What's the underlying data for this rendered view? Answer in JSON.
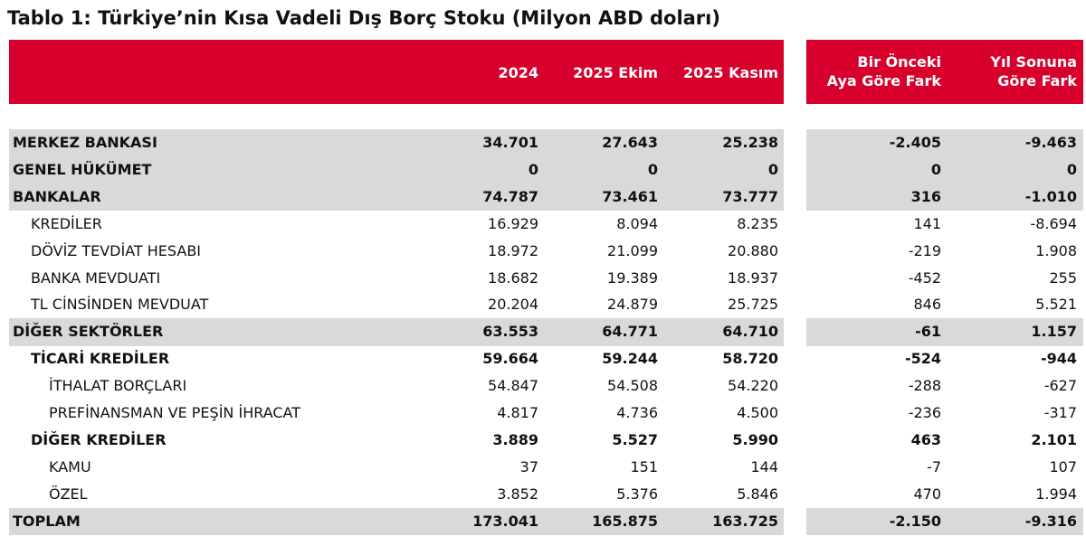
{
  "title": "Tablo 1: Türkiye’nin Kısa Vadeli Dış Borç Stoku (Milyon ABD doları)",
  "table": {
    "columns": [
      [
        "2024"
      ],
      [
        "2025 Ekim"
      ],
      [
        "2025 Kasım"
      ],
      [
        "Bir Önceki",
        "Aya Göre Fark"
      ],
      [
        "Yıl Sonuna",
        "Göre Fark"
      ]
    ],
    "rows": [
      {
        "label": "MERKEZ BANKASI",
        "level": 0,
        "bold": true,
        "shaded": true,
        "values": [
          "34.701",
          "27.643",
          "25.238",
          "-2.405",
          "-9.463"
        ]
      },
      {
        "label": "GENEL HÜKÜMET",
        "level": 0,
        "bold": true,
        "shaded": true,
        "values": [
          "0",
          "0",
          "0",
          "0",
          "0"
        ]
      },
      {
        "label": "BANKALAR",
        "level": 0,
        "bold": true,
        "shaded": true,
        "values": [
          "74.787",
          "73.461",
          "73.777",
          "316",
          "-1.010"
        ]
      },
      {
        "label": "KREDİLER",
        "level": 1,
        "bold": false,
        "shaded": false,
        "values": [
          "16.929",
          "8.094",
          "8.235",
          "141",
          "-8.694"
        ]
      },
      {
        "label": "DÖVİZ TEVDİAT HESABI",
        "level": 1,
        "bold": false,
        "shaded": false,
        "values": [
          "18.972",
          "21.099",
          "20.880",
          "-219",
          "1.908"
        ]
      },
      {
        "label": "BANKA MEVDUATI",
        "level": 1,
        "bold": false,
        "shaded": false,
        "values": [
          "18.682",
          "19.389",
          "18.937",
          "-452",
          "255"
        ]
      },
      {
        "label": "TL CİNSİNDEN MEVDUAT",
        "level": 1,
        "bold": false,
        "shaded": false,
        "values": [
          "20.204",
          "24.879",
          "25.725",
          "846",
          "5.521"
        ]
      },
      {
        "label": "DİĞER SEKTÖRLER",
        "level": 0,
        "bold": true,
        "shaded": true,
        "values": [
          "63.553",
          "64.771",
          "64.710",
          "-61",
          "1.157"
        ]
      },
      {
        "label": "TİCARİ KREDİLER",
        "level": 1,
        "bold": true,
        "shaded": false,
        "values": [
          "59.664",
          "59.244",
          "58.720",
          "-524",
          "-944"
        ]
      },
      {
        "label": "İTHALAT BORÇLARI",
        "level": 2,
        "bold": false,
        "shaded": false,
        "values": [
          "54.847",
          "54.508",
          "54.220",
          "-288",
          "-627"
        ]
      },
      {
        "label": "PREFİNANSMAN VE PEŞİN İHRACAT",
        "level": 2,
        "bold": false,
        "shaded": false,
        "values": [
          "4.817",
          "4.736",
          "4.500",
          "-236",
          "-317"
        ]
      },
      {
        "label": "DİĞER KREDİLER",
        "level": 1,
        "bold": true,
        "shaded": false,
        "values": [
          "3.889",
          "5.527",
          "5.990",
          "463",
          "2.101"
        ]
      },
      {
        "label": "KAMU",
        "level": 2,
        "bold": false,
        "shaded": false,
        "values": [
          "37",
          "151",
          "144",
          "-7",
          "107"
        ]
      },
      {
        "label": "ÖZEL",
        "level": 2,
        "bold": false,
        "shaded": false,
        "values": [
          "3.852",
          "5.376",
          "5.846",
          "470",
          "1.994"
        ]
      },
      {
        "label": "TOPLAM",
        "level": 0,
        "bold": true,
        "shaded": true,
        "values": [
          "173.041",
          "165.875",
          "163.725",
          "-2.150",
          "-9.316"
        ]
      }
    ]
  }
}
